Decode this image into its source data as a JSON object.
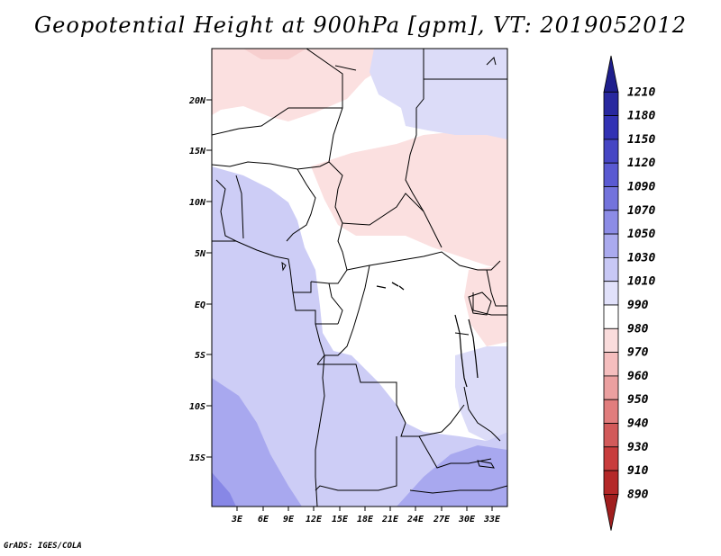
{
  "title": "Geopotential Height at 900hPa [gpm], VT: 2019052012",
  "credit": "GrADS: IGES/COLA",
  "map": {
    "lat_labels": [
      "20N",
      "15N",
      "10N",
      "5N",
      "EQ",
      "5S",
      "10S",
      "15S"
    ],
    "lon_labels": [
      "3E",
      "6E",
      "9E",
      "12E",
      "15E",
      "18E",
      "21E",
      "24E",
      "27E",
      "30E",
      "33E"
    ]
  },
  "colorbar": {
    "labels": [
      "1210",
      "1180",
      "1150",
      "1120",
      "1090",
      "1070",
      "1050",
      "1030",
      "1010",
      "990",
      "980",
      "970",
      "960",
      "950",
      "940",
      "930",
      "910",
      "890"
    ],
    "colors": [
      "#1e1e8c",
      "#28289f",
      "#3232b4",
      "#4646c4",
      "#5a5ad2",
      "#7373dc",
      "#8c8ce6",
      "#aaaaee",
      "#c8c8f5",
      "#e1e1fa",
      "#ffffff",
      "#fadcdc",
      "#f5bebe",
      "#eba0a0",
      "#e17d7d",
      "#d25a5a",
      "#c83c3c",
      "#b42828",
      "#a01e1e"
    ]
  }
}
